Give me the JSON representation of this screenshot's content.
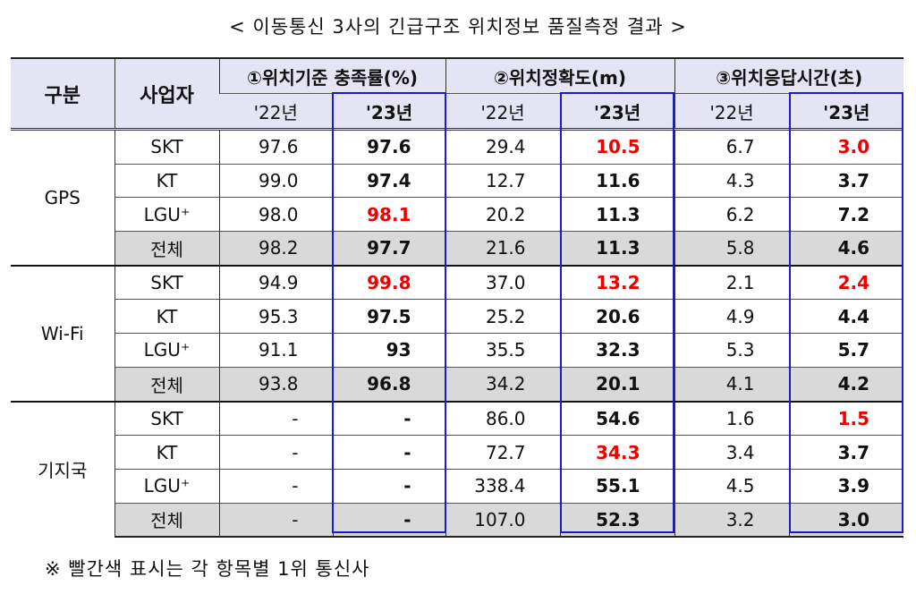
{
  "title": "< 이동통신 3사의 긴급구조 위치정보 품질측정 결과 >",
  "header": {
    "category": "구분",
    "carrier": "사업자",
    "metrics": [
      "①위치기준 충족률(%)",
      "②위치정확도(m)",
      "③위치응답시간(초)"
    ],
    "y22": "'22년",
    "y23": "'23년"
  },
  "groups": [
    {
      "name": "GPS",
      "rows": [
        {
          "carrier": "SKT",
          "v": [
            "97.6",
            "97.6",
            "29.4",
            "10.5",
            "6.7",
            "3.0"
          ],
          "red": [
            false,
            false,
            false,
            true,
            false,
            true
          ]
        },
        {
          "carrier": "KT",
          "v": [
            "99.0",
            "97.4",
            "12.7",
            "11.6",
            "4.3",
            "3.7"
          ],
          "red": [
            false,
            false,
            false,
            false,
            false,
            false
          ]
        },
        {
          "carrier": "LGU⁺",
          "v": [
            "98.0",
            "98.1",
            "20.2",
            "11.3",
            "6.2",
            "7.2"
          ],
          "red": [
            false,
            true,
            false,
            false,
            false,
            false
          ]
        },
        {
          "carrier": "전체",
          "v": [
            "98.2",
            "97.7",
            "21.6",
            "11.3",
            "5.8",
            "4.6"
          ],
          "red": [
            false,
            false,
            false,
            false,
            false,
            false
          ]
        }
      ]
    },
    {
      "name": "Wi-Fi",
      "rows": [
        {
          "carrier": "SKT",
          "v": [
            "94.9",
            "99.8",
            "37.0",
            "13.2",
            "2.1",
            "2.4"
          ],
          "red": [
            false,
            true,
            false,
            true,
            false,
            true
          ]
        },
        {
          "carrier": "KT",
          "v": [
            "95.3",
            "97.5",
            "25.2",
            "20.6",
            "4.9",
            "4.4"
          ],
          "red": [
            false,
            false,
            false,
            false,
            false,
            false
          ]
        },
        {
          "carrier": "LGU⁺",
          "v": [
            "91.1",
            "93",
            "35.5",
            "32.3",
            "5.3",
            "5.7"
          ],
          "red": [
            false,
            false,
            false,
            false,
            false,
            false
          ]
        },
        {
          "carrier": "전체",
          "v": [
            "93.8",
            "96.8",
            "34.2",
            "20.1",
            "4.1",
            "4.2"
          ],
          "red": [
            false,
            false,
            false,
            false,
            false,
            false
          ]
        }
      ]
    },
    {
      "name": "기지국",
      "rows": [
        {
          "carrier": "SKT",
          "v": [
            "-",
            "-",
            "86.0",
            "54.6",
            "1.6",
            "1.5"
          ],
          "red": [
            false,
            false,
            false,
            false,
            false,
            true
          ]
        },
        {
          "carrier": "KT",
          "v": [
            "-",
            "-",
            "72.7",
            "34.3",
            "3.4",
            "3.7"
          ],
          "red": [
            false,
            false,
            false,
            true,
            false,
            false
          ]
        },
        {
          "carrier": "LGU⁺",
          "v": [
            "-",
            "-",
            "338.4",
            "55.1",
            "4.5",
            "3.9"
          ],
          "red": [
            false,
            false,
            false,
            false,
            false,
            false
          ]
        },
        {
          "carrier": "전체",
          "v": [
            "-",
            "-",
            "107.0",
            "52.3",
            "3.2",
            "3.0"
          ],
          "red": [
            false,
            false,
            false,
            false,
            false,
            false
          ]
        }
      ]
    }
  ],
  "note": "※ 빨간색 표시는 각 항목별 1위 통신사"
}
